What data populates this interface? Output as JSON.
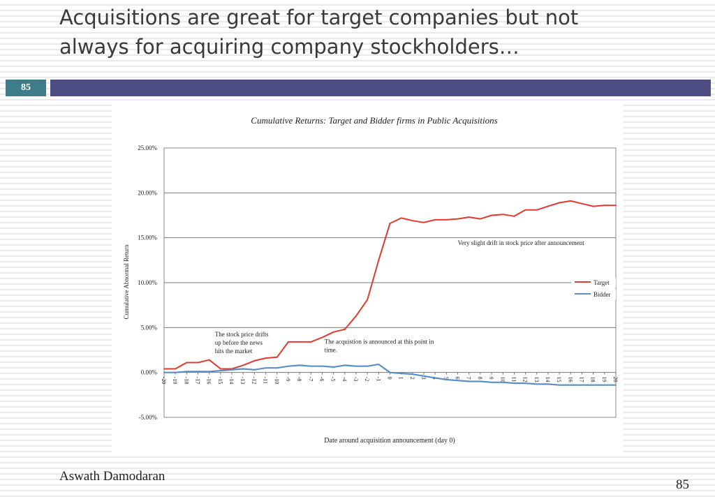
{
  "slide": {
    "title_line1": "Acquisitions are great for target companies but not",
    "title_line2": "always for acquiring company stockholders…",
    "slide_number": "85",
    "author": "Aswath Damodaran",
    "page_number": "85"
  },
  "colors": {
    "target": "#e03a30",
    "bidder": "#5b8fc3",
    "header_bar": "#4d4d84",
    "badge": "#3f7c89"
  },
  "chart_data": {
    "type": "line",
    "title": "Cumulative Returns: Target and Bidder firms in Public Acquisitions",
    "xlabel": "Date around acquisition announcement (day 0)",
    "ylabel": "Cumulative Abnormal Return",
    "ylim": [
      -5,
      25
    ],
    "yticks": [
      -5,
      0,
      5,
      10,
      15,
      20,
      25
    ],
    "ytick_labels": [
      "-5.00%",
      "0.00%",
      "5.00%",
      "10.00%",
      "15.00%",
      "20.00%",
      "25.00%"
    ],
    "grid": true,
    "x": [
      -20,
      -19,
      -18,
      -17,
      -16,
      -15,
      -14,
      -13,
      -12,
      -11,
      -10,
      -9,
      -8,
      -7,
      -6,
      -5,
      -4,
      -3,
      -2,
      -1,
      0,
      1,
      2,
      3,
      4,
      5,
      6,
      7,
      8,
      9,
      10,
      11,
      12,
      13,
      14,
      15,
      16,
      17,
      18,
      19,
      20
    ],
    "x_labels": [
      "-20",
      "-19",
      "-18",
      "-17",
      "-16",
      "-15",
      "-14",
      "-13",
      "-12",
      "-11",
      "-10",
      "-9",
      "-8",
      "-7",
      "-6",
      "-5",
      "-4",
      "-3",
      "-2",
      "-1",
      "0",
      "1",
      "2",
      "3",
      "4",
      "5",
      "6",
      "7",
      "8",
      "9",
      "10",
      "11",
      "12",
      "13",
      "14",
      "15",
      "16",
      "17",
      "18",
      "19",
      "20"
    ],
    "series": [
      {
        "name": "Target",
        "values": [
          0.4,
          0.4,
          1.1,
          1.1,
          1.4,
          0.4,
          0.4,
          0.8,
          1.3,
          1.6,
          1.7,
          3.4,
          3.4,
          3.4,
          3.9,
          4.5,
          4.8,
          6.3,
          8.1,
          12.5,
          16.6,
          17.2,
          16.9,
          16.7,
          17.0,
          17.0,
          17.1,
          17.3,
          17.1,
          17.5,
          17.6,
          17.4,
          18.1,
          18.1,
          18.5,
          18.9,
          19.1,
          18.8,
          18.5,
          18.6,
          18.6
        ]
      },
      {
        "name": "Bidder",
        "values": [
          0.0,
          0.0,
          0.1,
          0.1,
          0.1,
          0.2,
          0.3,
          0.4,
          0.3,
          0.5,
          0.5,
          0.7,
          0.8,
          0.7,
          0.7,
          0.6,
          0.8,
          0.7,
          0.7,
          0.9,
          0.0,
          -0.1,
          -0.2,
          -0.4,
          -0.6,
          -0.8,
          -0.9,
          -1.0,
          -1.0,
          -1.1,
          -1.1,
          -1.2,
          -1.2,
          -1.3,
          -1.3,
          -1.4,
          -1.4,
          -1.4,
          -1.4,
          -1.4,
          -1.4
        ]
      }
    ],
    "legend": [
      "Target",
      "Bidder"
    ],
    "legend_position": "right",
    "annotations": [
      {
        "text": [
          "The stock price drifts",
          "up before the news",
          "hits the market"
        ],
        "x": -15.5,
        "y": 4.0
      },
      {
        "text": [
          "The acquistion is announced at this point in",
          "time."
        ],
        "x": -5.8,
        "y": 3.2
      },
      {
        "text": [
          "Very slight drift in stock price after announcement"
        ],
        "x": 6.0,
        "y": 14.2
      }
    ]
  }
}
